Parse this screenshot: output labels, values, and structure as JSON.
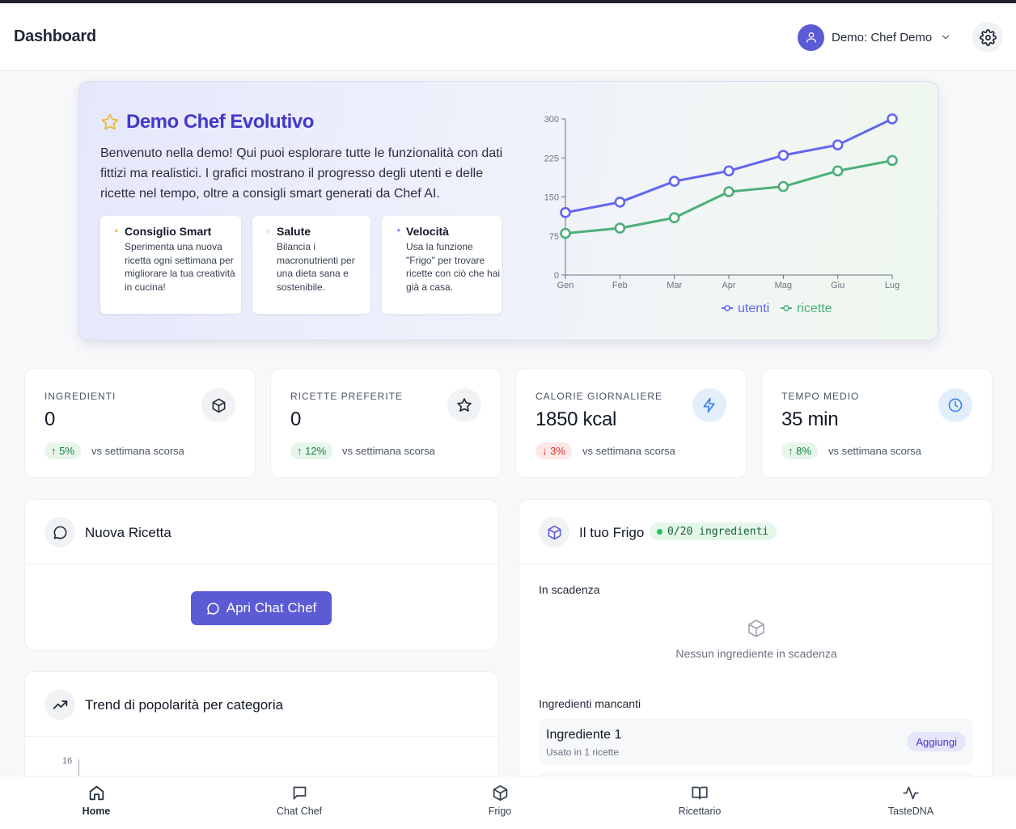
{
  "header": {
    "title": "Dashboard",
    "user_label": "Demo: Chef Demo"
  },
  "hero": {
    "title": "Demo Chef Evolutivo",
    "text": "Benvenuto nella demo! Qui puoi esplorare tutte le funzionalità con dati fittizi ma realistici. I grafici mostrano il progresso degli utenti e delle ricette nel tempo, oltre a consigli smart generati da Chef AI.",
    "tips": [
      {
        "title": "Consiglio Smart",
        "body": "Sperimenta una nuova ricetta ogni settimana per migliorare la tua creatività in cucina!",
        "dot_color": "#e8c84a"
      },
      {
        "title": "Salute",
        "body": "Bilancia i macronutrienti per una dieta sana e sostenibile.",
        "dot_color": "#9ca3af"
      },
      {
        "title": "Velocità",
        "body": "Usa la funzione \"Frigo\" per trovare ricette con ciò che hai già a casa.",
        "dot_color": "#818cf8"
      }
    ]
  },
  "chart_data": {
    "type": "line",
    "categories": [
      "Gen",
      "Feb",
      "Mar",
      "Apr",
      "Mag",
      "Giu",
      "Lug"
    ],
    "ylim": [
      0,
      300
    ],
    "yticks": [
      "0",
      "75",
      "150",
      "225",
      "300"
    ],
    "grid": false,
    "legend": "bottom",
    "series": [
      {
        "name": "utenti",
        "color": "#6366f1",
        "values": [
          120,
          140,
          180,
          200,
          230,
          250,
          300
        ]
      },
      {
        "name": "ricette",
        "color": "#4caf78",
        "values": [
          80,
          90,
          110,
          160,
          170,
          200,
          220
        ]
      }
    ]
  },
  "stats": [
    {
      "label": "INGREDIENTI",
      "value": "0",
      "change": "↑ 5%",
      "vs": "vs settimana scorsa",
      "trend": "up",
      "icon": "box-icon"
    },
    {
      "label": "RICETTE PREFERITE",
      "value": "0",
      "change": "↑ 12%",
      "vs": "vs settimana scorsa",
      "trend": "up",
      "icon": "star-icon"
    },
    {
      "label": "CALORIE GIORNALIERE",
      "value": "1850 kcal",
      "change": "↓ 3%",
      "vs": "vs settimana scorsa",
      "trend": "down",
      "icon": "lightning-icon"
    },
    {
      "label": "TEMPO MEDIO",
      "value": "35 min",
      "change": "↑ 8%",
      "vs": "vs settimana scorsa",
      "trend": "up",
      "icon": "clock-icon"
    }
  ],
  "new_recipe": {
    "title": "Nuova Ricetta",
    "button": "Apri Chat Chef"
  },
  "trend": {
    "title": "Trend di popolarità per categoria",
    "ytick": "16"
  },
  "fridge": {
    "title": "Il tuo Frigo",
    "badge": "0/20 ingredienti",
    "expiring_label": "In scadenza",
    "empty_text": "Nessun ingrediente in scadenza",
    "missing_label": "Ingredienti mancanti",
    "missing": [
      {
        "name": "Ingrediente 1",
        "usage": "Usato in 1 ricette",
        "action": "Aggiungi"
      }
    ]
  },
  "nav": [
    {
      "label": "Home",
      "icon": "home-icon",
      "active": true
    },
    {
      "label": "Chat Chef",
      "icon": "chat-icon",
      "active": false
    },
    {
      "label": "Frigo",
      "icon": "box-icon",
      "active": false
    },
    {
      "label": "Ricettario",
      "icon": "book-icon",
      "active": false
    },
    {
      "label": "TasteDNA",
      "icon": "activity-icon",
      "active": false
    }
  ],
  "colors": {
    "accent": "#5b5bd6",
    "hero_title": "#4338ca",
    "up_bg": "#e6f6ea",
    "up_text": "#15803d",
    "down_bg": "#fde8e8",
    "down_text": "#dc2626"
  }
}
